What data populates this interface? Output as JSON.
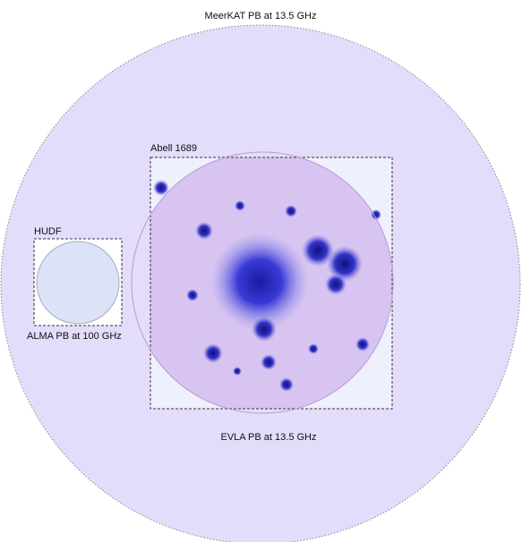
{
  "labels": {
    "meerkat": "MeerKAT PB at 13.5 GHz",
    "abell": "Abell 1689",
    "hudf": "HUDF",
    "alma": "ALMA PB at 100 GHz",
    "evla": "EVLA PB at 13.5 GHz"
  }
}
